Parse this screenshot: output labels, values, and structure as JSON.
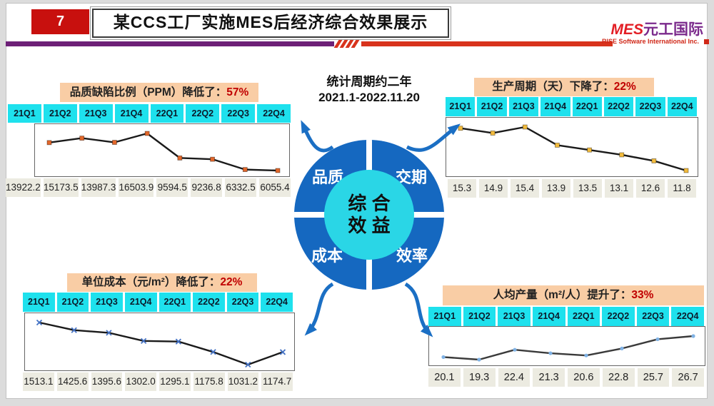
{
  "slide": {
    "page_number": "7",
    "title": "某CCS工厂实施MES后经济综合效果展示",
    "logo": {
      "mes": "MES",
      "brand": "元工国际",
      "subtitle": "RISE Software International Inc."
    },
    "period_line1": "统计周期约二年",
    "period_line2": "2021.1-2022.11.20"
  },
  "diagram": {
    "center_line1": "综 合",
    "center_line2": "效 益",
    "quadrant_top_left": "品质",
    "quadrant_top_right": "交期",
    "quadrant_bottom_left": "成本",
    "quadrant_bottom_right": "效率"
  },
  "colors": {
    "accent_red": "#c00000",
    "badge_red": "#c8100e",
    "divider_purple": "#6d2077",
    "divider_red": "#d8331c",
    "wheel_blue": "#1568c0",
    "hub_cyan": "#2ad6e6",
    "quarter_cell_cyan": "#1ee1ed",
    "label_peach": "#f9cda5",
    "value_cell_gray": "#ecebe1",
    "arrow_blue": "#1b6fc4"
  },
  "chart_data": [
    {
      "id": "quality-defect-ppm",
      "type": "line",
      "title": "品质缺陷比例（PPM）降低了：",
      "highlight": "57%",
      "categories": [
        "21Q1",
        "21Q2",
        "21Q3",
        "21Q4",
        "22Q1",
        "22Q2",
        "22Q3",
        "22Q4"
      ],
      "values": [
        13922.2,
        15173.5,
        13987.3,
        16503.9,
        9594.5,
        9236.8,
        6332.5,
        6055.4
      ],
      "value_labels": [
        "13922.2",
        "15173.5",
        "13987.3",
        "16503.9",
        "9594.5",
        "9236.8",
        "6332.5",
        "6055.4"
      ],
      "marker": "square",
      "marker_color": "#e2672b",
      "line_color": "#1a1a1a",
      "grid": false,
      "legend": "none"
    },
    {
      "id": "production-cycle-days",
      "type": "line",
      "title": "生产周期（天）下降了：",
      "highlight": "22%",
      "categories": [
        "21Q1",
        "21Q2",
        "21Q3",
        "21Q4",
        "22Q1",
        "22Q2",
        "22Q3",
        "22Q4"
      ],
      "values": [
        15.3,
        14.9,
        15.4,
        13.9,
        13.5,
        13.1,
        12.6,
        11.8
      ],
      "value_labels": [
        "15.3",
        "14.9",
        "15.4",
        "13.9",
        "13.5",
        "13.1",
        "12.6",
        "11.8"
      ],
      "marker": "square",
      "marker_color": "#f2bb3d",
      "line_color": "#1a1a1a",
      "grid": false,
      "legend": "none"
    },
    {
      "id": "unit-cost-yuan-per-m2",
      "type": "line",
      "title": "单位成本（元/m²）降低了：",
      "highlight": "22%",
      "categories": [
        "21Q1",
        "21Q2",
        "21Q3",
        "21Q4",
        "22Q1",
        "22Q2",
        "22Q3",
        "22Q4"
      ],
      "values": [
        1513.1,
        1425.6,
        1395.6,
        1302.0,
        1295.1,
        1175.8,
        1031.2,
        1174.7
      ],
      "value_labels": [
        "1513.1",
        "1425.6",
        "1395.6",
        "1302.0",
        "1295.1",
        "1175.8",
        "1031.2",
        "1174.7"
      ],
      "marker": "x",
      "marker_color": "#4472c4",
      "line_color": "#1a1a1a",
      "grid": false,
      "legend": "none"
    },
    {
      "id": "per-capita-output-m2",
      "type": "line",
      "title": "人均产量（m²/人）提升了：",
      "highlight": "33%",
      "categories": [
        "21Q1",
        "21Q2",
        "21Q3",
        "21Q4",
        "22Q1",
        "22Q2",
        "22Q3",
        "22Q4"
      ],
      "values": [
        20.1,
        19.3,
        22.4,
        21.3,
        20.6,
        22.8,
        25.7,
        26.7
      ],
      "value_labels": [
        "20.1",
        "19.3",
        "22.4",
        "21.3",
        "20.6",
        "22.8",
        "25.7",
        "26.7"
      ],
      "marker": "dot",
      "marker_color": "#7fb2e5",
      "line_color": "#3a3a3a",
      "grid": false,
      "legend": "none"
    }
  ]
}
